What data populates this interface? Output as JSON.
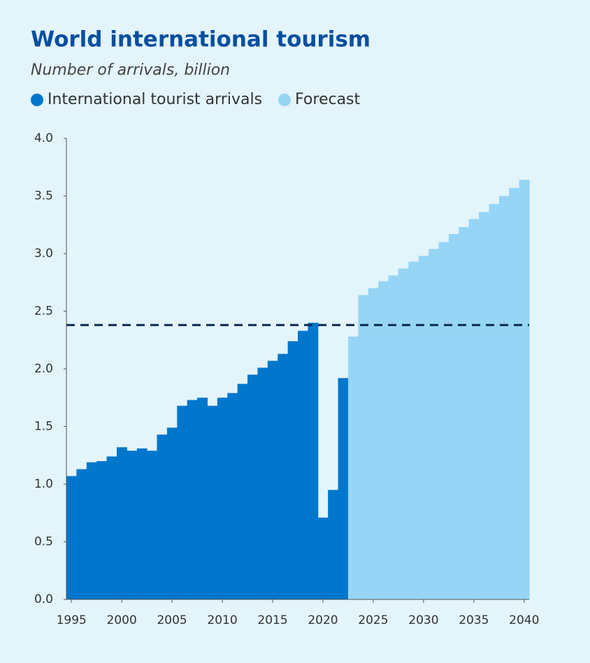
{
  "chart_data": {
    "type": "bar",
    "title": "World international tourism",
    "subtitle": "Number of arrivals, billion",
    "x": [
      1995,
      1996,
      1997,
      1998,
      1999,
      2000,
      2001,
      2002,
      2003,
      2004,
      2005,
      2006,
      2007,
      2008,
      2009,
      2010,
      2011,
      2012,
      2013,
      2014,
      2015,
      2016,
      2017,
      2018,
      2019,
      2020,
      2021,
      2022,
      2023,
      2024,
      2025,
      2026,
      2027,
      2028,
      2029,
      2030,
      2031,
      2032,
      2033,
      2034,
      2035,
      2036,
      2037,
      2038,
      2039,
      2040
    ],
    "series": [
      {
        "name": "International tourist arrivals",
        "color": "#0077cc",
        "values": [
          1.07,
          1.13,
          1.19,
          1.2,
          1.24,
          1.32,
          1.29,
          1.31,
          1.29,
          1.43,
          1.49,
          1.68,
          1.73,
          1.75,
          1.68,
          1.75,
          1.79,
          1.87,
          1.95,
          2.01,
          2.07,
          2.13,
          2.24,
          2.33,
          2.4,
          0.71,
          0.95,
          1.92,
          null,
          null,
          null,
          null,
          null,
          null,
          null,
          null,
          null,
          null,
          null,
          null,
          null,
          null,
          null,
          null,
          null,
          null
        ]
      },
      {
        "name": "Forecast",
        "color": "#96d5f5",
        "values": [
          null,
          null,
          null,
          null,
          null,
          null,
          null,
          null,
          null,
          null,
          null,
          null,
          null,
          null,
          null,
          null,
          null,
          null,
          null,
          null,
          null,
          null,
          null,
          null,
          null,
          null,
          null,
          null,
          2.28,
          2.64,
          2.7,
          2.76,
          2.81,
          2.87,
          2.93,
          2.98,
          3.04,
          3.1,
          3.17,
          3.23,
          3.3,
          3.36,
          3.43,
          3.5,
          3.57,
          3.64
        ]
      }
    ],
    "reference_line": {
      "value": 2.38,
      "color": "#0a2a50",
      "style": "dashed"
    },
    "xlim": [
      1994.5,
      2040.5
    ],
    "xticks": [
      1995,
      2000,
      2005,
      2010,
      2015,
      2020,
      2025,
      2030,
      2035,
      2040
    ],
    "ylim": [
      0,
      4
    ],
    "yticks": [
      {
        "value": 0,
        "label": "0.0"
      },
      0.5,
      {
        "value": 1,
        "label": "1.0"
      },
      1.5,
      {
        "value": 2,
        "label": "2.0"
      },
      2.5,
      {
        "value": 3,
        "label": "3.0"
      },
      3.5,
      {
        "value": 4,
        "label": "4.0"
      }
    ],
    "grid": false,
    "legend": "top-left"
  }
}
